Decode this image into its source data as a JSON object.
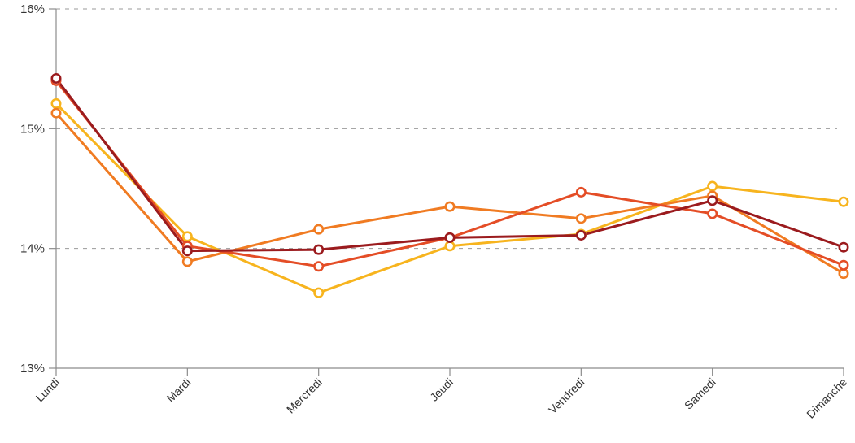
{
  "chart_data": {
    "type": "line",
    "title": "",
    "xlabel": "",
    "ylabel": "",
    "categories": [
      "Lundi",
      "Mardi",
      "Mercredi",
      "Jeudi",
      "Vendredi",
      "Samedi",
      "Dimanche"
    ],
    "yticks": [
      "13%",
      "14%",
      "15%",
      "16%"
    ],
    "ylim": [
      13,
      16
    ],
    "grid": true,
    "legend": "none",
    "series": [
      {
        "color": "#f7b41e",
        "values": [
          15.21,
          14.1,
          13.63,
          14.02,
          14.12,
          14.52,
          14.39
        ]
      },
      {
        "color": "#f07b22",
        "values": [
          15.13,
          13.89,
          14.16,
          14.35,
          14.25,
          14.44,
          13.79
        ]
      },
      {
        "color": "#e44d26",
        "values": [
          15.4,
          14.02,
          13.85,
          14.09,
          14.47,
          14.29,
          13.86
        ]
      },
      {
        "color": "#9b1b1e",
        "values": [
          15.42,
          13.98,
          13.99,
          14.09,
          14.11,
          14.4,
          14.01
        ]
      }
    ]
  }
}
